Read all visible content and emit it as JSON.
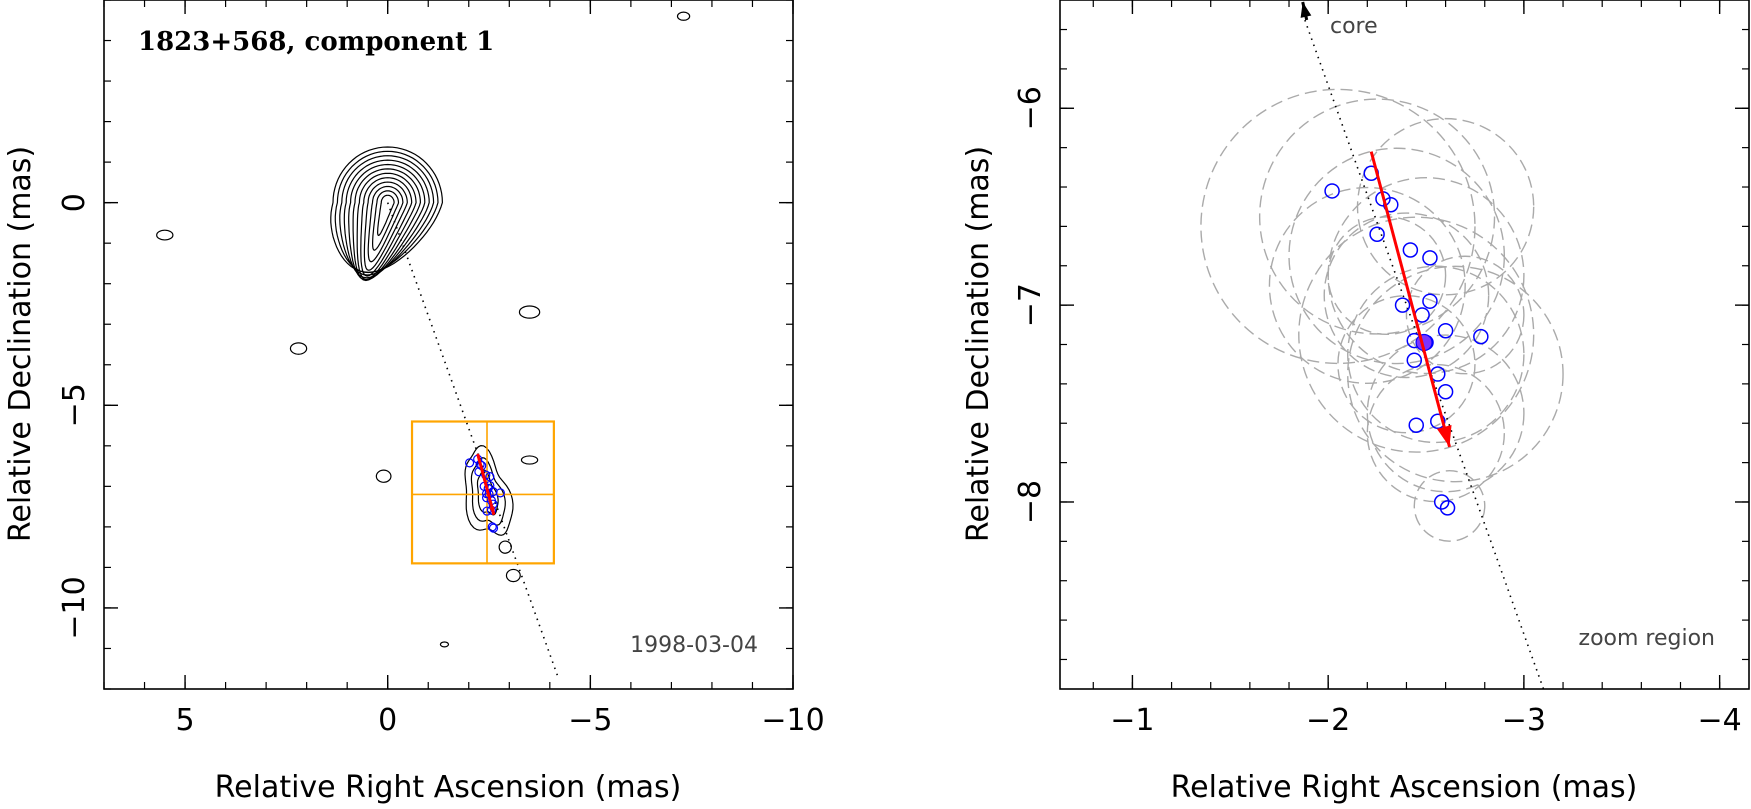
{
  "chart_data": [
    {
      "type": "scatter",
      "title": "1823+568, component 1",
      "annotation": "1998-03-04",
      "xlabel": "Relative Right Ascension (mas)",
      "ylabel": "Relative Declination (mas)",
      "xlim": [
        7,
        -10
      ],
      "ylim": [
        -12,
        5
      ],
      "xticks": [
        5,
        0,
        -5,
        -10
      ],
      "yticks": [
        0,
        -5,
        -10
      ],
      "xtick_labels": [
        "5",
        "0",
        "−5",
        "−10"
      ],
      "ytick_labels": [
        "0",
        "−5",
        "−10"
      ],
      "core": {
        "x": 0,
        "y": 0
      },
      "jet_axis": [
        [
          0,
          0
        ],
        [
          -4.2,
          -11.7
        ]
      ],
      "zoom_box": {
        "x": [
          -0.6,
          -4.1
        ],
        "y": [
          -5.4,
          -8.9
        ],
        "center": [
          -2.45,
          -7.2
        ]
      },
      "motion_vector": {
        "from": [
          -2.22,
          -6.2
        ],
        "to": [
          -2.62,
          -7.7
        ]
      },
      "contour_blobs": [
        {
          "x": 5.5,
          "y": -0.8,
          "rx": 0.2,
          "ry": 0.12
        },
        {
          "x": 2.2,
          "y": -3.6,
          "rx": 0.2,
          "ry": 0.14
        },
        {
          "x": -3.5,
          "y": -2.7,
          "rx": 0.25,
          "ry": 0.15
        },
        {
          "x": 0.1,
          "y": -6.75,
          "rx": 0.18,
          "ry": 0.15
        },
        {
          "x": -3.5,
          "y": -6.35,
          "rx": 0.2,
          "ry": 0.1
        },
        {
          "x": -2.9,
          "y": -8.5,
          "rx": 0.15,
          "ry": 0.15
        },
        {
          "x": -3.1,
          "y": -9.2,
          "rx": 0.17,
          "ry": 0.15
        },
        {
          "x": -1.4,
          "y": -10.9,
          "rx": 0.1,
          "ry": 0.06
        },
        {
          "x": -7.3,
          "y": 4.6,
          "rx": 0.15,
          "ry": 0.1
        }
      ],
      "core_contour_levels": 12,
      "series": [
        {
          "values": [
            [
              -2.02,
              -6.42
            ],
            [
              -2.22,
              -6.33
            ],
            [
              -2.28,
              -6.46
            ],
            [
              -2.32,
              -6.49
            ],
            [
              -2.25,
              -6.64
            ],
            [
              -2.42,
              -6.72
            ],
            [
              -2.52,
              -6.76
            ],
            [
              -2.38,
              -7.0
            ],
            [
              -2.52,
              -6.98
            ],
            [
              -2.48,
              -7.05
            ],
            [
              -2.6,
              -7.13
            ],
            [
              -2.78,
              -7.16
            ],
            [
              -2.44,
              -7.18
            ],
            [
              -2.5,
              -7.19
            ],
            [
              -2.44,
              -7.28
            ],
            [
              -2.56,
              -7.35
            ],
            [
              -2.6,
              -7.44
            ],
            [
              -2.45,
              -7.61
            ],
            [
              -2.56,
              -7.59
            ],
            [
              -2.58,
              -8.0
            ],
            [
              -2.61,
              -8.03
            ]
          ]
        }
      ]
    },
    {
      "type": "scatter",
      "xlabel": "Relative Right Ascension (mas)",
      "ylabel": "Relative Declination (mas)",
      "xlim": [
        -0.63,
        -4.15
      ],
      "ylim": [
        -8.95,
        -5.45
      ],
      "xticks": [
        -1,
        -2,
        -3,
        -4
      ],
      "yticks": [
        -6,
        -7,
        -8
      ],
      "xtick_labels": [
        "−1",
        "−2",
        "−3",
        "−4"
      ],
      "ytick_labels": [
        "−6",
        "−7",
        "−8"
      ],
      "core_label": "core",
      "region_label": "zoom region",
      "jet_axis": [
        [
          -1.87,
          -5.45
        ],
        [
          -3.1,
          -8.95
        ]
      ],
      "motion_vector": {
        "from": [
          -2.22,
          -6.22
        ],
        "to": [
          -2.62,
          -7.72
        ]
      },
      "mean_position": {
        "x": -2.49,
        "y": -7.19
      },
      "beam_circles": [
        {
          "x": -2.05,
          "y": -6.6,
          "r": 0.7
        },
        {
          "x": -2.25,
          "y": -6.55,
          "r": 0.6
        },
        {
          "x": -2.35,
          "y": -6.75,
          "r": 0.55
        },
        {
          "x": -2.5,
          "y": -6.85,
          "r": 0.5
        },
        {
          "x": -2.2,
          "y": -6.9,
          "r": 0.5
        },
        {
          "x": -2.6,
          "y": -6.5,
          "r": 0.45
        },
        {
          "x": -2.4,
          "y": -6.95,
          "r": 0.42
        },
        {
          "x": -2.55,
          "y": -7.25,
          "r": 0.45
        },
        {
          "x": -2.4,
          "y": -7.3,
          "r": 0.35
        },
        {
          "x": -2.65,
          "y": -7.35,
          "r": 0.55
        },
        {
          "x": -2.45,
          "y": -7.15,
          "r": 0.6
        },
        {
          "x": -2.55,
          "y": -7.65,
          "r": 0.35
        },
        {
          "x": -2.6,
          "y": -7.55,
          "r": 0.4
        },
        {
          "x": -2.62,
          "y": -8.02,
          "r": 0.18
        },
        {
          "x": -2.3,
          "y": -6.85,
          "r": 0.3
        },
        {
          "x": -2.7,
          "y": -7.05,
          "r": 0.3
        }
      ],
      "series": [
        {
          "values": [
            [
              -2.02,
              -6.42
            ],
            [
              -2.22,
              -6.33
            ],
            [
              -2.28,
              -6.46
            ],
            [
              -2.32,
              -6.49
            ],
            [
              -2.25,
              -6.64
            ],
            [
              -2.42,
              -6.72
            ],
            [
              -2.52,
              -6.76
            ],
            [
              -2.38,
              -7.0
            ],
            [
              -2.52,
              -6.98
            ],
            [
              -2.48,
              -7.05
            ],
            [
              -2.6,
              -7.13
            ],
            [
              -2.78,
              -7.16
            ],
            [
              -2.44,
              -7.18
            ],
            [
              -2.5,
              -7.19
            ],
            [
              -2.44,
              -7.28
            ],
            [
              -2.56,
              -7.35
            ],
            [
              -2.6,
              -7.44
            ],
            [
              -2.45,
              -7.61
            ],
            [
              -2.56,
              -7.59
            ],
            [
              -2.58,
              -8.0
            ],
            [
              -2.61,
              -8.03
            ]
          ]
        }
      ]
    }
  ],
  "colors": {
    "axes": "#000000",
    "contour": "#000000",
    "points": "#0000ff",
    "mean_point": "#7a33ff",
    "vector": "#ff0000",
    "zoom_box": "#ffa500",
    "beams": "#aaaaaa",
    "jet_axis": "#000000"
  }
}
